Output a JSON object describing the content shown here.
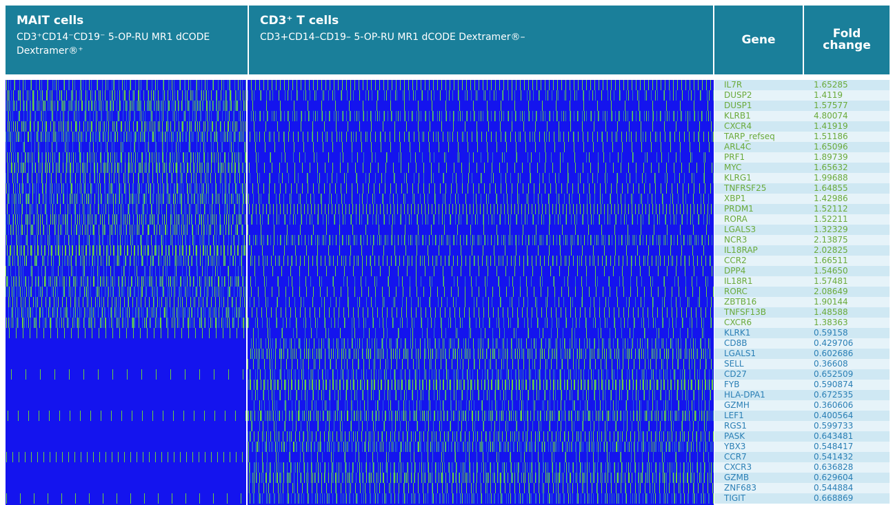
{
  "header": {
    "mait": {
      "title": "MAIT cells",
      "subtitle": "CD3⁺CD14⁻CD19⁻ 5-OP-RU MR1 dCODE Dextramer®⁺"
    },
    "tcells": {
      "title": "CD3⁺ T cells",
      "subtitle": "CD3+CD14–CD19– 5-OP-RU MR1 dCODE Dextramer®–"
    },
    "gene": "Gene",
    "fold": "Fold change"
  },
  "table": {
    "rows": [
      [
        "IL7R",
        "1.65285"
      ],
      [
        "DUSP2",
        "1.4119"
      ],
      [
        "DUSP1",
        "1.57577"
      ],
      [
        "KLRB1",
        "4.80074"
      ],
      [
        "CXCR4",
        "1.41919"
      ],
      [
        "TARP_refseq",
        "1.51186"
      ],
      [
        "ARL4C",
        "1.65096"
      ],
      [
        "PRF1",
        "1.89739"
      ],
      [
        "MYC",
        "1.65632"
      ],
      [
        "KLRG1",
        "1.99688"
      ],
      [
        "TNFRSF25",
        "1.64855"
      ],
      [
        "XBP1",
        "1.42986"
      ],
      [
        "PRDM1",
        "1.52112"
      ],
      [
        "RORA",
        "1.52211"
      ],
      [
        "LGALS3",
        "1.32329"
      ],
      [
        "NCR3",
        "2.13875"
      ],
      [
        "IL18RAP",
        "2.02825"
      ],
      [
        "CCR2",
        "1.66511"
      ],
      [
        "DPP4",
        "1.54650"
      ],
      [
        "IL18R1",
        "1.57481"
      ],
      [
        "RORC",
        "2.08649"
      ],
      [
        "ZBTB16",
        "1.90144"
      ],
      [
        "TNFSF13B",
        "1.48588"
      ],
      [
        "CXCR6",
        "1.38363"
      ],
      [
        "KLRK1",
        "0.59158"
      ],
      [
        "CD8B",
        "0.429706"
      ],
      [
        "LGALS1",
        "0.602686"
      ],
      [
        "SELL",
        "0.36608"
      ],
      [
        "CD27",
        "0.652509"
      ],
      [
        "FYB",
        "0.590874"
      ],
      [
        "HLA-DPA1",
        "0.672535"
      ],
      [
        "GZMH",
        "0.360606"
      ],
      [
        "LEF1",
        "0.400564"
      ],
      [
        "RGS1",
        "0.599733"
      ],
      [
        "PASK",
        "0.643481"
      ],
      [
        "YBX3",
        "0.548417"
      ],
      [
        "CCR7",
        "0.541432"
      ],
      [
        "CXCR3",
        "0.636828"
      ],
      [
        "GZMB",
        "0.629604"
      ],
      [
        "ZNF683",
        "0.544884"
      ],
      [
        "TIGIT",
        "0.668869"
      ]
    ]
  }
}
